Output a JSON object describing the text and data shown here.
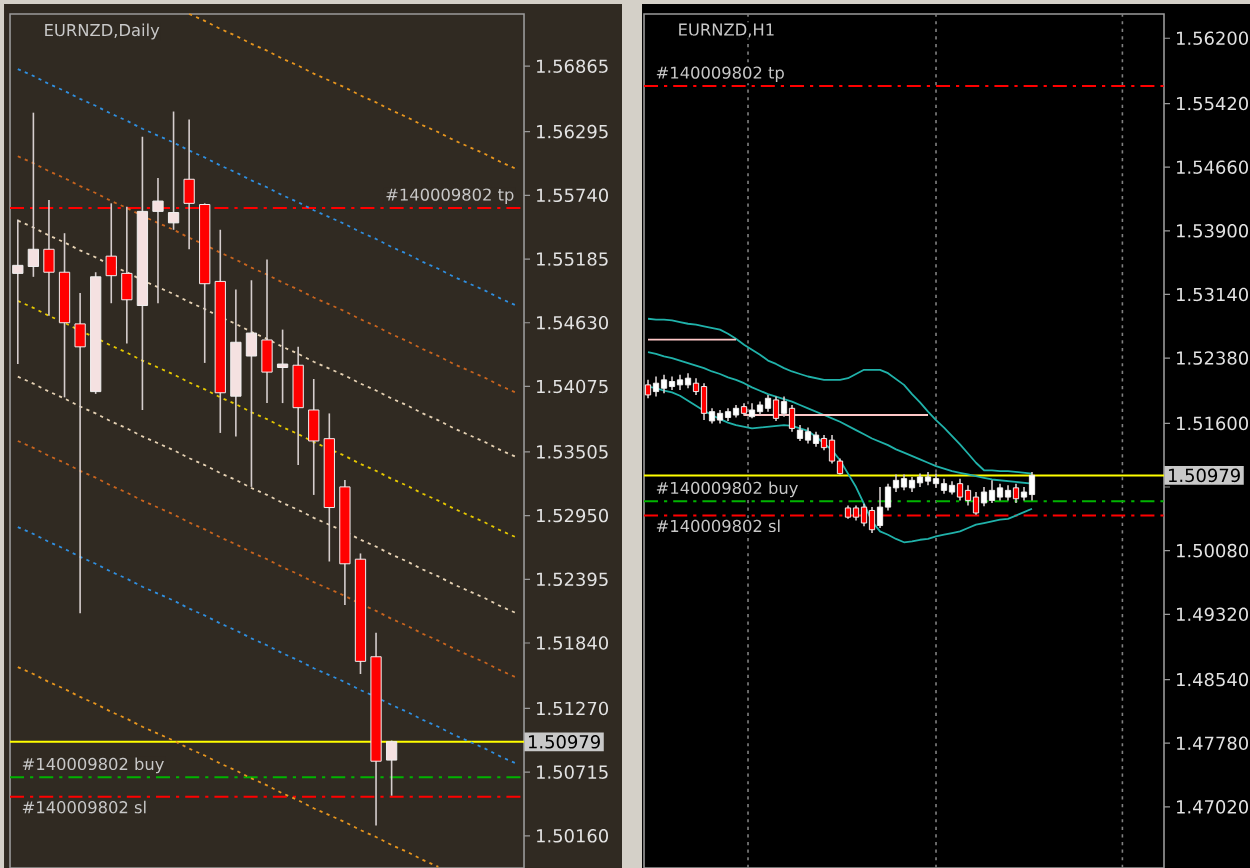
{
  "chart_data": [
    {
      "type": "candlestick",
      "title": "EURNZD,Daily",
      "categories": [
        null,
        null,
        null,
        null,
        null,
        null,
        null,
        null,
        null,
        null,
        null,
        null,
        null,
        null,
        null,
        null,
        null,
        null,
        null,
        null,
        null,
        null,
        null,
        null,
        null,
        null,
        null,
        null,
        null,
        null,
        null,
        null,
        null
      ],
      "ohlc": [
        [
          1.5506,
          1.5553,
          1.5427,
          1.5513
        ],
        [
          1.5512,
          1.5646,
          1.5503,
          1.5527
        ],
        [
          1.5527,
          1.557,
          1.5469,
          1.5507
        ],
        [
          1.5507,
          1.5541,
          1.5398,
          1.5463
        ],
        [
          1.5462,
          1.5489,
          1.521,
          1.5442
        ],
        [
          1.5403,
          1.5507,
          1.5401,
          1.5503
        ],
        [
          1.5521,
          1.5567,
          1.548,
          1.5504
        ],
        [
          1.5506,
          1.5564,
          1.5445,
          1.5483
        ],
        [
          1.5478,
          1.5625,
          1.5387,
          1.556
        ],
        [
          1.556,
          1.5589,
          1.548,
          1.5569
        ],
        [
          1.555,
          1.5647,
          1.5544,
          1.5559
        ],
        [
          1.5588,
          1.564,
          1.5527,
          1.5567
        ],
        [
          1.5566,
          1.5567,
          1.5428,
          1.5497
        ],
        [
          1.5499,
          1.5544,
          1.5367,
          1.5402
        ],
        [
          1.5399,
          1.5492,
          1.5364,
          1.5446
        ],
        [
          1.5434,
          1.55,
          1.532,
          1.5454
        ],
        [
          1.5448,
          1.5518,
          1.5393,
          1.542
        ],
        [
          1.5424,
          1.5457,
          1.5393,
          1.5427
        ],
        [
          1.5426,
          1.5442,
          1.5339,
          1.5389
        ],
        [
          1.5387,
          1.5414,
          1.5313,
          1.536
        ],
        [
          1.5362,
          1.5384,
          1.5255,
          1.5302
        ],
        [
          1.532,
          1.5326,
          1.5217,
          1.5253
        ],
        [
          1.5257,
          1.5262,
          1.5157,
          1.5168
        ],
        [
          1.5172,
          1.5193,
          1.5025,
          1.5081
        ],
        [
          1.5082,
          1.5099,
          1.5051,
          1.5098
        ],
        null,
        null,
        null,
        null,
        null,
        null,
        null,
        null
      ],
      "colors": [
        "#f5e1e1",
        "#f5e1e1",
        "#ff0000",
        "#ff0000",
        "#ff0000",
        "#f5e1e1",
        "#ff0000",
        "#ff0000",
        "#f5e1e1",
        "#f5e1e1",
        "#f5e1e1",
        "#ff0000",
        "#ff0000",
        "#ff0000",
        "#f5e1e1",
        "#f5e1e1",
        "#ff0000",
        "#f5e1e1",
        "#ff0000",
        "#ff0000",
        "#ff0000",
        "#ff0000",
        "#ff0000",
        "#ff0000",
        "#f5e1e1",
        null,
        null,
        null,
        null,
        null,
        null,
        null,
        null
      ],
      "ylim": [
        1.4988,
        1.5732
      ],
      "yticks": [
        1.56865,
        1.56295,
        {
          "value": 1.5574,
          "label": "1.55740"
        },
        1.55185,
        {
          "value": 1.5463,
          "label": "1.54630"
        },
        1.54075,
        1.53505,
        {
          "value": 1.5295,
          "label": "1.52950"
        },
        1.52395,
        {
          "value": 1.5184,
          "label": "1.51840"
        },
        {
          "value": 1.5127,
          "label": "1.51270"
        },
        1.50715,
        {
          "value": 1.5016,
          "label": "1.50160"
        }
      ],
      "series": [
        {
          "type": "line",
          "color": "#e8961e",
          "line_style": "dotted",
          "values": [
            null,
            null,
            null,
            null,
            null,
            null,
            null,
            null,
            null,
            null,
            null,
            1.5732,
            1.5726,
            1.5719,
            1.5713,
            1.5706,
            1.57,
            1.5693,
            1.5687,
            1.568,
            1.5674,
            1.5668,
            1.5661,
            1.5655,
            1.5648,
            1.5642,
            1.5635,
            1.5629,
            1.5622,
            1.5616,
            1.561,
            1.5603,
            1.5597
          ]
        },
        {
          "type": "line",
          "color": "#2f8fe0",
          "line_style": "dotted",
          "values": [
            1.5684,
            1.5678,
            1.5671,
            1.5665,
            1.5658,
            1.5652,
            1.5645,
            1.5639,
            1.5632,
            1.5626,
            1.562,
            1.5613,
            1.5607,
            1.56,
            1.5594,
            1.5587,
            1.5581,
            1.5574,
            1.5568,
            1.5561,
            1.5555,
            1.5549,
            1.5542,
            1.5536,
            1.5529,
            1.5523,
            1.5516,
            1.551,
            1.5503,
            1.5497,
            1.5491,
            1.5484,
            1.5478
          ]
        },
        {
          "type": "line",
          "color": "#c8641e",
          "line_style": "dotted",
          "values": [
            1.5608,
            1.5602,
            1.5595,
            1.5589,
            1.5582,
            1.5576,
            1.5569,
            1.5563,
            1.5556,
            1.555,
            1.5544,
            1.5537,
            1.5531,
            1.5524,
            1.5518,
            1.5511,
            1.5505,
            1.5498,
            1.5492,
            1.5485,
            1.5479,
            1.5473,
            1.5466,
            1.546,
            1.5453,
            1.5447,
            1.544,
            1.5434,
            1.5427,
            1.5421,
            1.5415,
            1.5408,
            1.5402
          ]
        },
        {
          "type": "line",
          "color": "#e6d2b4",
          "line_style": "dotted",
          "values": [
            1.5552,
            1.5546,
            1.5539,
            1.5533,
            1.5526,
            1.552,
            1.5513,
            1.5507,
            1.55,
            1.5494,
            1.5488,
            1.5481,
            1.5475,
            1.5468,
            1.5462,
            1.5455,
            1.5449,
            1.5442,
            1.5436,
            1.5429,
            1.5423,
            1.5417,
            1.541,
            1.5404,
            1.5397,
            1.5391,
            1.5384,
            1.5378,
            1.5371,
            1.5365,
            1.5359,
            1.5352,
            1.5346
          ]
        },
        {
          "type": "line",
          "color": "#e6c800",
          "line_style": "dotted",
          "values": [
            1.5482,
            1.5476,
            1.5469,
            1.5463,
            1.5456,
            1.545,
            1.5443,
            1.5437,
            1.543,
            1.5424,
            1.5418,
            1.5411,
            1.5405,
            1.5398,
            1.5392,
            1.5385,
            1.5379,
            1.5372,
            1.5366,
            1.5359,
            1.5353,
            1.5347,
            1.534,
            1.5334,
            1.5327,
            1.5321,
            1.5314,
            1.5308,
            1.5301,
            1.5295,
            1.5289,
            1.5282,
            1.5276
          ]
        },
        {
          "type": "line",
          "color": "#e6d2b4",
          "line_style": "dotted",
          "values": [
            1.5416,
            1.541,
            1.5403,
            1.5397,
            1.539,
            1.5384,
            1.5377,
            1.5371,
            1.5364,
            1.5358,
            1.5352,
            1.5345,
            1.5339,
            1.5332,
            1.5326,
            1.5319,
            1.5313,
            1.5306,
            1.53,
            1.5293,
            1.5287,
            1.5281,
            1.5274,
            1.5268,
            1.5261,
            1.5255,
            1.5248,
            1.5242,
            1.5235,
            1.5229,
            1.5223,
            1.5216,
            1.521
          ]
        },
        {
          "type": "line",
          "color": "#c8641e",
          "line_style": "dotted",
          "values": [
            1.536,
            1.5354,
            1.5347,
            1.5341,
            1.5334,
            1.5328,
            1.5321,
            1.5315,
            1.5308,
            1.5302,
            1.5296,
            1.5289,
            1.5283,
            1.5276,
            1.527,
            1.5263,
            1.5257,
            1.525,
            1.5244,
            1.5237,
            1.5231,
            1.5225,
            1.5218,
            1.5212,
            1.5205,
            1.5199,
            1.5192,
            1.5186,
            1.5179,
            1.5173,
            1.5167,
            1.516,
            1.5154
          ]
        },
        {
          "type": "line",
          "color": "#2f8fe0",
          "line_style": "dotted",
          "values": [
            1.5285,
            1.5279,
            1.5272,
            1.5266,
            1.5259,
            1.5253,
            1.5246,
            1.524,
            1.5233,
            1.5227,
            1.5221,
            1.5214,
            1.5208,
            1.5201,
            1.5195,
            1.5188,
            1.5182,
            1.5175,
            1.5169,
            1.5162,
            1.5156,
            1.515,
            1.5143,
            1.5137,
            1.513,
            1.5124,
            1.5117,
            1.5111,
            1.5104,
            1.5098,
            1.5092,
            1.5085,
            1.5079
          ]
        },
        {
          "type": "line",
          "color": "#e8961e",
          "line_style": "dotted",
          "values": [
            1.5163,
            1.5157,
            1.515,
            1.5144,
            1.5137,
            1.5131,
            1.5124,
            1.5118,
            1.5111,
            1.5105,
            1.5099,
            1.5092,
            1.5086,
            1.5079,
            1.5073,
            1.5066,
            1.506,
            1.5053,
            1.5047,
            1.504,
            1.5034,
            1.5028,
            1.5021,
            1.5015,
            1.5008,
            1.5002,
            1.4995,
            1.4989,
            null,
            null,
            null,
            null,
            null
          ]
        }
      ],
      "ref_lines": [
        {
          "axis": "y",
          "value": 1.5563,
          "label": "#140009802 tp",
          "color": "#ff0000",
          "line_style": "dashdot"
        },
        {
          "axis": "y",
          "value": 1.5067,
          "label": "#140009802 buy",
          "color": "#00b400",
          "line_style": "dashdot"
        },
        {
          "axis": "y",
          "value": 1.505,
          "label": "#140009802 sl",
          "color": "#ff0000",
          "line_style": "dashdot"
        },
        {
          "axis": "y",
          "value": 1.50979,
          "label": "1.50979",
          "color": "#ffff00",
          "line_style": "solid"
        }
      ]
    },
    {
      "type": "candlestick",
      "title": "EURNZD,H1",
      "categories": [
        null,
        null,
        null,
        null,
        null,
        null,
        null,
        null,
        null,
        null,
        null,
        null,
        null,
        null,
        null,
        null,
        null,
        null,
        null,
        null,
        null,
        null,
        null,
        null,
        null,
        null,
        null,
        null,
        null,
        null,
        null,
        null,
        null,
        null,
        null,
        null,
        null,
        null,
        null,
        null,
        null,
        null,
        null,
        null,
        null,
        null,
        null,
        null,
        null,
        null,
        null,
        null,
        null,
        null,
        null,
        null,
        null,
        null,
        null,
        null,
        null,
        null,
        null,
        null,
        null
      ],
      "ohlc": [
        [
          1.5206,
          1.5212,
          1.519,
          1.5194
        ],
        [
          1.5198,
          1.5216,
          1.5192,
          1.5208
        ],
        [
          1.5202,
          1.5218,
          1.5196,
          1.5212
        ],
        [
          1.5204,
          1.5216,
          1.52,
          1.521
        ],
        [
          1.5206,
          1.5218,
          1.52,
          1.5212
        ],
        [
          1.5206,
          1.522,
          1.5202,
          1.5214
        ],
        [
          1.5208,
          1.5214,
          1.5194,
          1.5198
        ],
        [
          1.5204,
          1.5208,
          1.5164,
          1.5172
        ],
        [
          1.5163,
          1.5178,
          1.516,
          1.5174
        ],
        [
          1.5164,
          1.5176,
          1.516,
          1.5172
        ],
        [
          1.5167,
          1.5178,
          1.5163,
          1.5174
        ],
        [
          1.517,
          1.5182,
          1.5167,
          1.5178
        ],
        [
          1.518,
          1.5184,
          1.5169,
          1.5172
        ],
        [
          1.5168,
          1.5184,
          1.5166,
          1.5176
        ],
        [
          1.5174,
          1.5186,
          1.517,
          1.5182
        ],
        [
          1.5178,
          1.5194,
          1.5174,
          1.519
        ],
        [
          1.5188,
          1.5192,
          1.5163,
          1.5166
        ],
        [
          1.5172,
          1.5192,
          1.5168,
          1.5186
        ],
        [
          1.5178,
          1.5182,
          1.515,
          1.5154
        ],
        [
          1.5142,
          1.5158,
          1.5139,
          1.5152
        ],
        [
          1.514,
          1.5155,
          1.5136,
          1.515
        ],
        [
          1.5136,
          1.515,
          1.5132,
          1.5146
        ],
        [
          1.5142,
          1.5146,
          1.5128,
          1.5131
        ],
        [
          1.514,
          1.5146,
          1.5112,
          1.5115
        ],
        [
          1.5115,
          1.5118,
          1.5099,
          1.51
        ],
        [
          1.5059,
          1.5062,
          1.5046,
          1.5048
        ],
        [
          1.5059,
          1.5062,
          1.5044,
          1.5048
        ],
        [
          1.506,
          1.5064,
          1.5037,
          1.5041
        ],
        [
          1.5056,
          1.506,
          1.5029,
          1.5033
        ],
        [
          1.5038,
          1.5084,
          1.5035,
          1.506
        ],
        [
          1.506,
          1.5088,
          1.5056,
          1.5084
        ],
        [
          1.5083,
          1.5099,
          1.5078,
          1.5092
        ],
        [
          1.5084,
          1.5099,
          1.508,
          1.5094
        ],
        [
          1.5083,
          1.5096,
          1.5078,
          1.5092
        ],
        [
          1.5089,
          1.51,
          1.5084,
          1.5096
        ],
        [
          1.5091,
          1.5102,
          1.5086,
          1.5096
        ],
        [
          1.5088,
          1.51,
          1.5083,
          1.5094
        ],
        [
          1.508,
          1.5094,
          1.5076,
          1.5088
        ],
        [
          1.5078,
          1.5091,
          1.5075,
          1.5086
        ],
        [
          1.5088,
          1.5094,
          1.5068,
          1.5072
        ],
        [
          1.508,
          1.5086,
          1.5062,
          1.5068
        ],
        [
          1.5072,
          1.5078,
          1.5051,
          1.5053
        ],
        [
          1.5065,
          1.5084,
          1.5061,
          1.5078
        ],
        [
          1.5068,
          1.5092,
          1.5065,
          1.508
        ],
        [
          1.5072,
          1.5088,
          1.5068,
          1.5083
        ],
        [
          1.5072,
          1.5086,
          1.5068,
          1.508
        ],
        [
          1.5083,
          1.5088,
          1.5065,
          1.507
        ],
        [
          1.5072,
          1.5084,
          1.5068,
          1.5078
        ],
        [
          1.5075,
          1.5102,
          1.5068,
          1.5098
        ],
        null,
        null,
        null,
        null,
        null,
        null,
        null,
        null,
        null,
        null,
        null,
        null,
        null,
        null,
        null,
        null
      ],
      "colors": [
        "#ff0000",
        "#ffffff",
        "#ffffff",
        "#ffffff",
        "#ffffff",
        "#ffffff",
        "#ff0000",
        "#ff0000",
        "#ffffff",
        "#ffffff",
        "#ffffff",
        "#ffffff",
        "#ff0000",
        "#ffffff",
        "#ffffff",
        "#ffffff",
        "#ff0000",
        "#ffffff",
        "#ff0000",
        "#ffffff",
        "#ffffff",
        "#ffffff",
        "#ff0000",
        "#ff0000",
        "#ff0000",
        "#ff0000",
        "#ff0000",
        "#ff0000",
        "#ff0000",
        "#ffffff",
        "#ffffff",
        "#ffffff",
        "#ffffff",
        "#ffffff",
        "#ffffff",
        "#ffffff",
        "#ffffff",
        "#ffffff",
        "#ffffff",
        "#ff0000",
        "#ff0000",
        "#ff0000",
        "#ffffff",
        "#ffffff",
        "#ffffff",
        "#ffffff",
        "#ff0000",
        "#ffffff",
        "#ffffff",
        null,
        null,
        null,
        null,
        null,
        null,
        null,
        null,
        null,
        null,
        null,
        null,
        null,
        null,
        null,
        null
      ],
      "ylim": [
        1.4629,
        1.5649
      ],
      "yticks": [
        {
          "value": 1.562,
          "label": "1.56200"
        },
        {
          "value": 1.5542,
          "label": "1.55420"
        },
        {
          "value": 1.5466,
          "label": "1.54660"
        },
        {
          "value": 1.539,
          "label": "1.53900"
        },
        {
          "value": 1.5314,
          "label": "1.53140"
        },
        {
          "value": 1.5238,
          "label": "1.52380"
        },
        {
          "value": 1.516,
          "label": "1.51600"
        },
        {
          "value": 1.5084,
          "label": null
        },
        {
          "value": 1.5008,
          "label": "1.50080"
        },
        {
          "value": 1.4932,
          "label": "1.49320"
        },
        {
          "value": 1.4854,
          "label": "1.48540"
        },
        {
          "value": 1.4778,
          "label": "1.47780"
        },
        {
          "value": 1.4702,
          "label": "1.47020"
        }
      ],
      "series": [
        {
          "type": "line",
          "color": "#20b2aa",
          "line_style": "solid",
          "values": [
            1.5285,
            1.5284,
            1.5284,
            1.5283,
            1.5281,
            1.5279,
            1.5278,
            1.5276,
            1.5274,
            1.5272,
            1.5267,
            1.5261,
            1.5254,
            1.5248,
            1.5242,
            1.5235,
            1.5231,
            1.5226,
            1.5222,
            1.5219,
            1.5216,
            1.5214,
            1.5212,
            1.5212,
            1.5212,
            1.5214,
            1.5219,
            1.5224,
            1.5224,
            1.5224,
            1.522,
            1.5213,
            1.5206,
            1.5195,
            1.5185,
            1.5174,
            1.5164,
            1.5155,
            1.5145,
            1.5135,
            1.5124,
            1.5113,
            1.5104,
            1.5104,
            1.5103,
            1.5103,
            1.5102,
            1.5101,
            1.51,
            null,
            null,
            null,
            null,
            null,
            null,
            null,
            null,
            null,
            null,
            null,
            null,
            null,
            null,
            null,
            null
          ]
        },
        {
          "type": "line",
          "color": "#20b2aa",
          "line_style": "solid",
          "values": [
            1.5245,
            1.5243,
            1.524,
            1.5238,
            1.5235,
            1.5232,
            1.5229,
            1.5226,
            1.5222,
            1.5219,
            1.5215,
            1.5212,
            1.5208,
            1.5203,
            1.5199,
            1.5195,
            1.5192,
            1.5189,
            1.5186,
            1.5182,
            1.5178,
            1.5174,
            1.517,
            1.5166,
            1.5162,
            1.5157,
            1.5152,
            1.5147,
            1.5142,
            1.5138,
            1.5134,
            1.5129,
            1.5125,
            1.5121,
            1.5117,
            1.5113,
            1.5109,
            1.5106,
            1.5103,
            1.5101,
            1.5099,
            1.5097,
            1.5095,
            1.5093,
            1.5092,
            1.5091,
            1.509,
            1.5089,
            1.5088,
            null,
            null,
            null,
            null,
            null,
            null,
            null,
            null,
            null,
            null,
            null,
            null,
            null,
            null,
            null,
            null
          ]
        },
        {
          "type": "line",
          "color": "#20b2aa",
          "line_style": "solid",
          "values": [
            1.5204,
            1.5202,
            1.5199,
            1.5197,
            1.5193,
            1.5187,
            1.5181,
            1.5175,
            1.517,
            1.5165,
            1.5161,
            1.5158,
            1.5156,
            1.5154,
            1.5155,
            1.5156,
            1.5157,
            1.5158,
            1.5157,
            1.5154,
            1.5151,
            1.5144,
            1.5136,
            1.5128,
            1.5116,
            1.51,
            1.5084,
            1.5064,
            1.5043,
            1.5031,
            1.5027,
            1.5022,
            1.5018,
            1.5019,
            1.5021,
            1.5022,
            1.5025,
            1.5027,
            1.5029,
            1.5031,
            1.5035,
            1.5039,
            1.5041,
            1.5043,
            1.5045,
            1.5046,
            1.505,
            1.5054,
            1.5058,
            null,
            null,
            null,
            null,
            null,
            null,
            null,
            null,
            null,
            null,
            null,
            null,
            null,
            null,
            null,
            null
          ]
        },
        {
          "type": "line",
          "color": "#ffc8c8",
          "line_style": "solid",
          "values": [
            1.526,
            1.526,
            1.526,
            1.526,
            1.526,
            1.526,
            1.526,
            1.526,
            1.526,
            1.526,
            1.526,
            1.526,
            null,
            null,
            null,
            null,
            null,
            null,
            null,
            null,
            null,
            null,
            null,
            null,
            null,
            null,
            null,
            null,
            null,
            null,
            null,
            null,
            null,
            null,
            null,
            null,
            null,
            null,
            null,
            null,
            null,
            null,
            null,
            null,
            null,
            null,
            null,
            null,
            null,
            null,
            null,
            null,
            null,
            null,
            null,
            null,
            null,
            null,
            null,
            null,
            null,
            null,
            null,
            null,
            null
          ]
        },
        {
          "type": "line",
          "color": "#ffc8c8",
          "line_style": "solid",
          "values": [
            null,
            null,
            null,
            null,
            null,
            null,
            null,
            null,
            null,
            null,
            null,
            null,
            1.517,
            1.517,
            1.517,
            1.517,
            1.517,
            1.517,
            1.517,
            1.517,
            1.517,
            1.517,
            1.517,
            1.517,
            1.517,
            1.517,
            1.517,
            1.517,
            1.517,
            1.517,
            1.517,
            1.517,
            1.517,
            1.517,
            1.517,
            1.517,
            null,
            null,
            null,
            null,
            null,
            null,
            null,
            null,
            null,
            null,
            null,
            null,
            null,
            null,
            null,
            null,
            null,
            null,
            null,
            null,
            null,
            null,
            null,
            null,
            null,
            null,
            null,
            null,
            null
          ]
        }
      ],
      "ref_lines": [
        {
          "axis": "y",
          "value": 1.5563,
          "label": "#140009802 tp",
          "color": "#ff0000",
          "line_style": "dashdot"
        },
        {
          "axis": "y",
          "value": 1.5067,
          "label": "#140009802 buy",
          "color": "#00b400",
          "line_style": "dashdot"
        },
        {
          "axis": "y",
          "value": 1.505,
          "label": "#140009802 sl",
          "color": "#ff0000",
          "line_style": "dashdot"
        },
        {
          "axis": "y",
          "value": 1.50979,
          "label": "1.50979",
          "color": "#ffff00",
          "line_style": "solid"
        }
      ]
    }
  ]
}
